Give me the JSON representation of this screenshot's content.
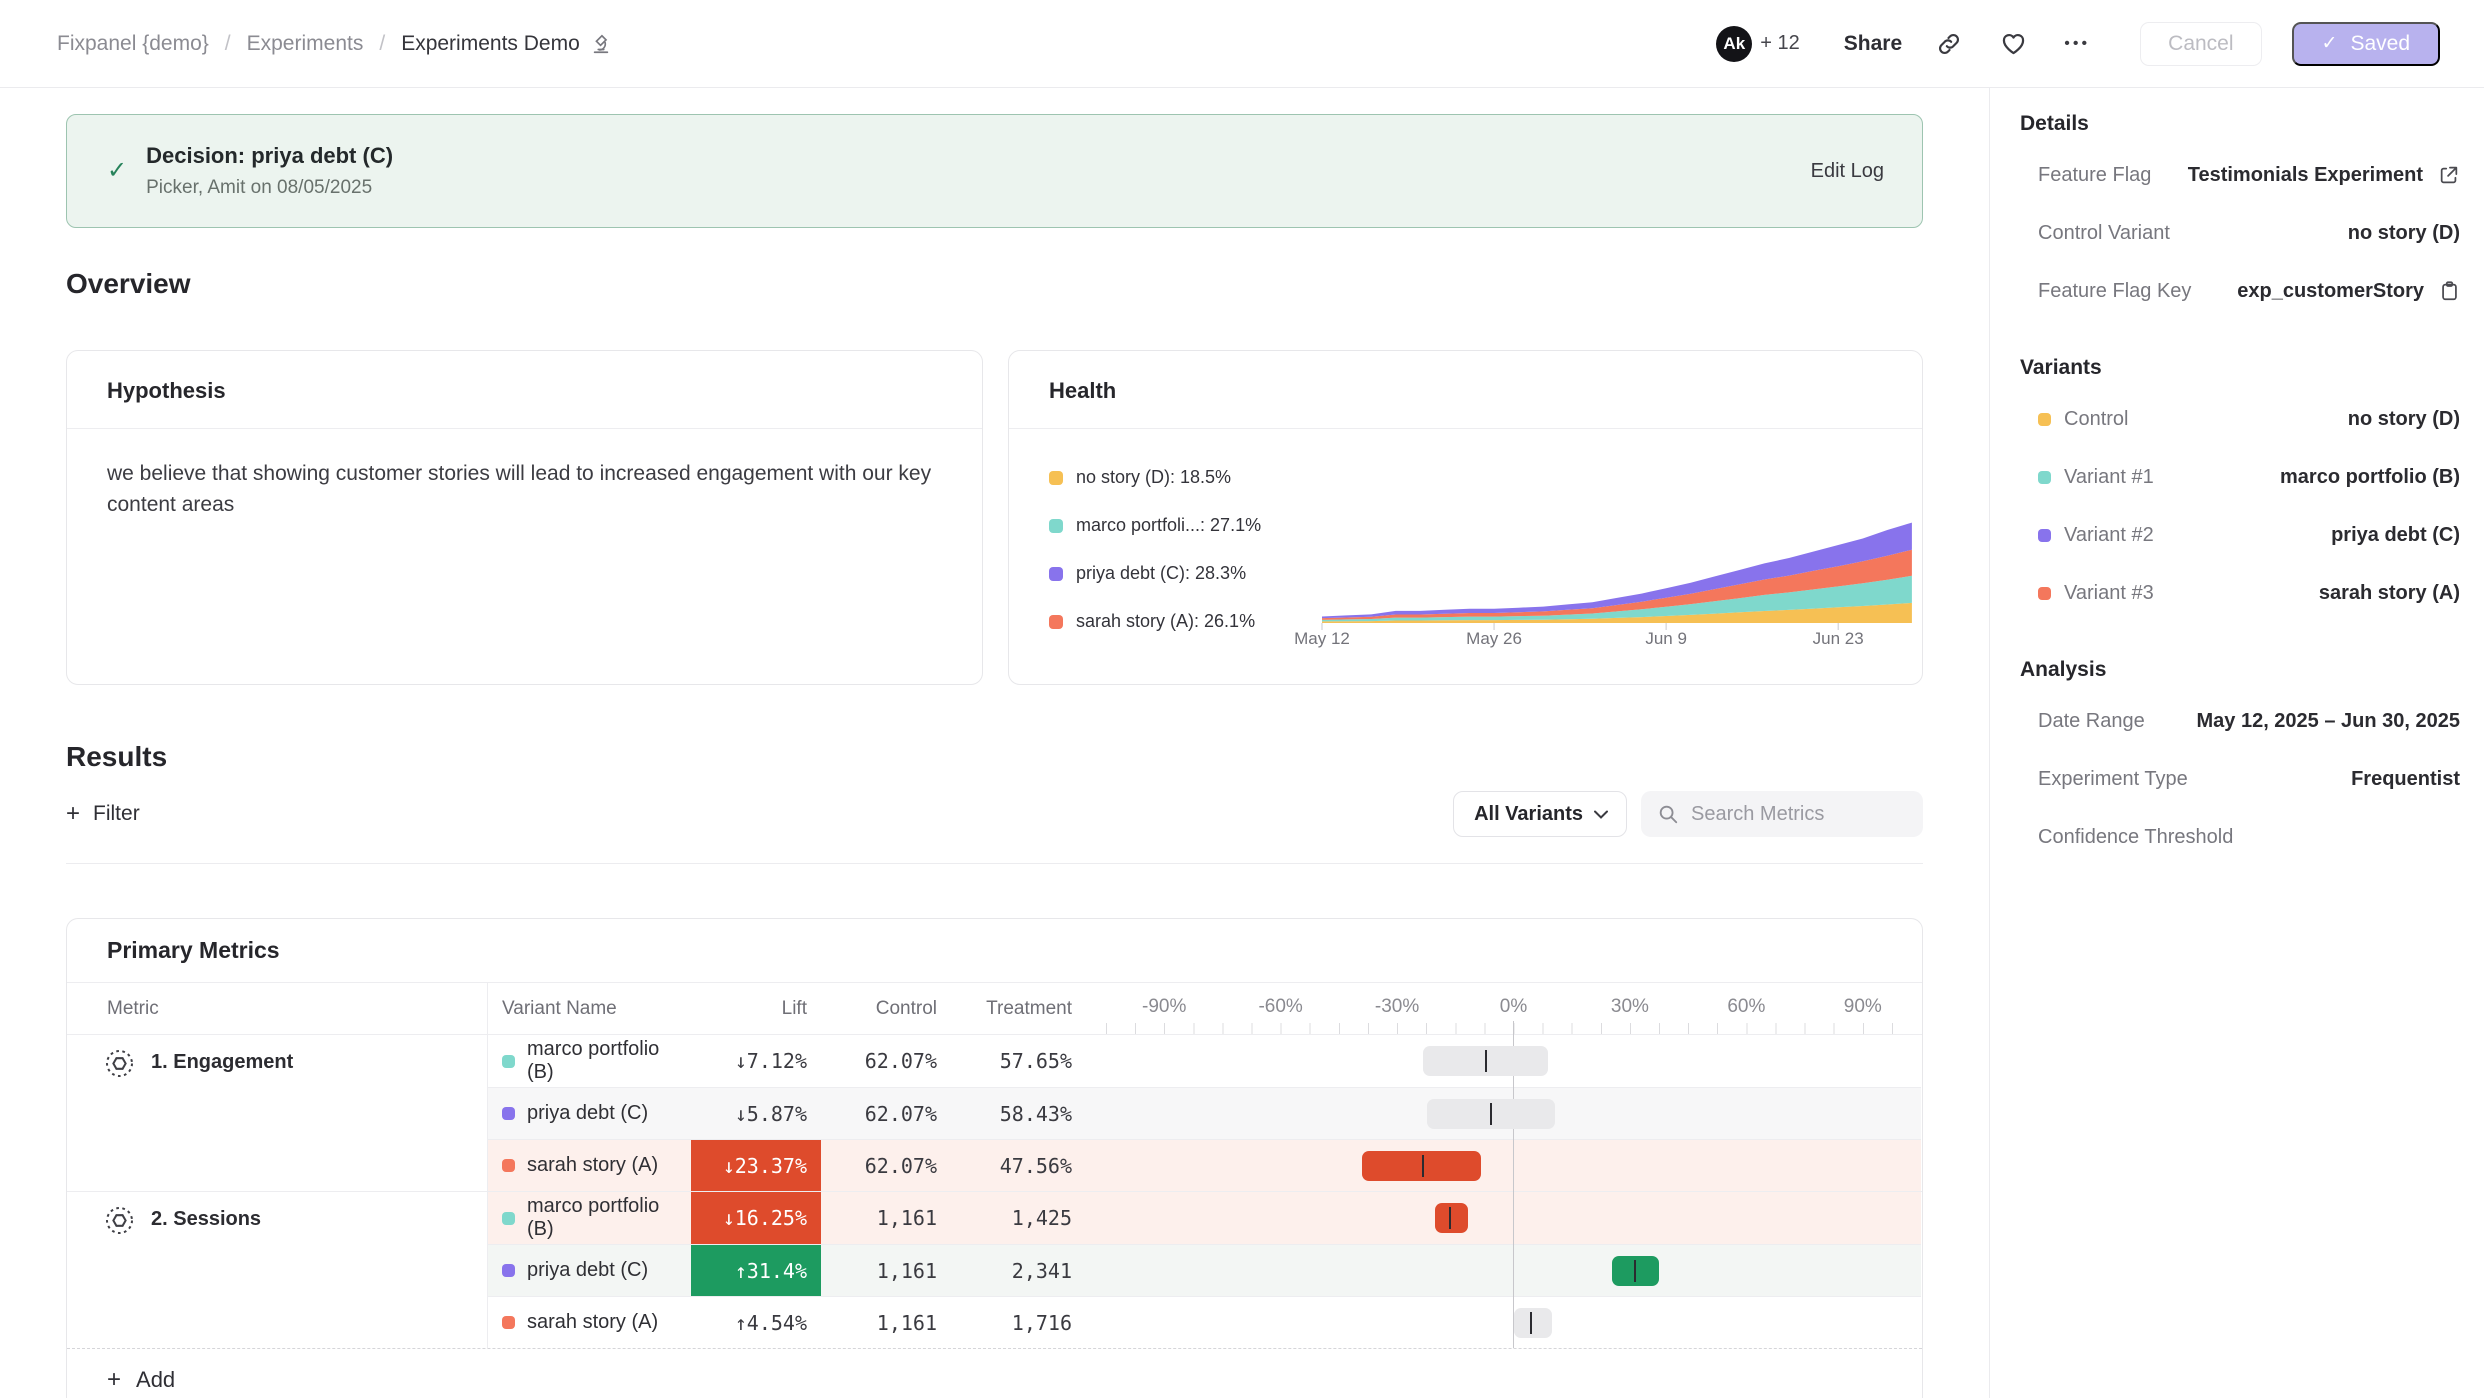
{
  "header": {
    "breadcrumb": [
      {
        "label": "Fixpanel {demo}"
      },
      {
        "label": "Experiments"
      },
      {
        "label": "Experiments Demo"
      }
    ],
    "avatar_initials": "Ak",
    "collaborators_more": "+ 12",
    "share_label": "Share",
    "cancel_label": "Cancel",
    "saved_label": "Saved",
    "saved_check": "✓"
  },
  "banner": {
    "check": "✓",
    "title": "Decision: priya debt (C)",
    "subtitle": "Picker, Amit on 08/05/2025",
    "action": "Edit Log"
  },
  "overview": {
    "title": "Overview",
    "hypothesis": {
      "title": "Hypothesis",
      "body": "we believe that showing customer stories will lead to increased engagement with our key content areas"
    },
    "health": {
      "title": "Health"
    }
  },
  "chart_data": [
    {
      "type": "area",
      "title": "Health",
      "stacked": true,
      "x_axis_labels": [
        "May 12",
        "May 26",
        "Jun 9",
        "Jun 23"
      ],
      "tick_days": [
        0,
        14,
        28,
        42
      ],
      "x_days": [
        0,
        2,
        4,
        6,
        8,
        10,
        12,
        14,
        16,
        18,
        20,
        22,
        24,
        26,
        28,
        30,
        32,
        34,
        36,
        38,
        40,
        42,
        44,
        46,
        48
      ],
      "series": [
        {
          "name": "no story (D)",
          "color": "#f6c054",
          "values": [
            1.5,
            1.6,
            1.8,
            2.3,
            2.3,
            2.5,
            2.7,
            2.7,
            2.9,
            3.1,
            3.5,
            3.9,
            4.7,
            5.5,
            6.5,
            7.5,
            8.7,
            9.9,
            11.1,
            12.1,
            13.3,
            14.5,
            15.7,
            17.1,
            18.6
          ]
        },
        {
          "name": "marco portfolio (B)",
          "color": "#7fd8cc",
          "values": [
            1.4,
            1.7,
            1.9,
            2.7,
            2.7,
            3.0,
            3.2,
            3.2,
            3.5,
            3.7,
            4.3,
            4.9,
            6.0,
            7.2,
            8.6,
            10.0,
            11.6,
            13.2,
            14.9,
            16.2,
            17.8,
            19.4,
            21.1,
            23.0,
            25.1
          ]
        },
        {
          "name": "sarah story (A)",
          "color": "#f4775c",
          "values": [
            1.6,
            1.8,
            2.1,
            2.9,
            2.9,
            3.1,
            3.4,
            3.4,
            3.6,
            3.9,
            4.4,
            4.9,
            6.0,
            7.0,
            8.3,
            9.6,
            11.2,
            12.7,
            14.3,
            15.6,
            17.2,
            18.7,
            20.3,
            22.1,
            24.2
          ]
        },
        {
          "name": "priya debt (C)",
          "color": "#8873ec",
          "values": [
            1.5,
            1.9,
            2.2,
            3.3,
            3.3,
            3.6,
            3.9,
            3.9,
            4.2,
            4.5,
            5.0,
            5.5,
            6.5,
            7.5,
            8.8,
            10.1,
            11.7,
            13.4,
            14.9,
            16.3,
            17.9,
            19.6,
            21.1,
            23.9,
            25.1
          ]
        }
      ],
      "legend": [
        {
          "label": "no story (D): 18.5%",
          "color": "#f6c054"
        },
        {
          "label": "marco portfoli...: 27.1%",
          "color": "#7fd8cc"
        },
        {
          "label": "priya debt (C): 28.3%",
          "color": "#8873ec"
        },
        {
          "label": "sarah story (A): 26.1%",
          "color": "#f4775c"
        }
      ]
    },
    {
      "type": "ci_bars",
      "axis": {
        "min": -105,
        "max": 105,
        "ticks": [
          -90,
          -60,
          -30,
          0,
          30,
          60,
          90
        ],
        "tick_suffix": "%"
      },
      "rows": [
        {
          "metric": "1. Engagement",
          "variant": "marco portfolio (B)",
          "low": -23.3,
          "high": 9.0,
          "mean": -7.12,
          "color": "gray"
        },
        {
          "metric": "1. Engagement",
          "variant": "priya debt (C)",
          "low": -22.2,
          "high": 10.6,
          "mean": -5.87,
          "color": "gray"
        },
        {
          "metric": "1. Engagement",
          "variant": "sarah story (A)",
          "low": -39.0,
          "high": -8.5,
          "mean": -23.37,
          "color": "red"
        },
        {
          "metric": "2. Sessions",
          "variant": "marco portfolio (B)",
          "low": -20.2,
          "high": -11.6,
          "mean": -16.25,
          "color": "red"
        },
        {
          "metric": "2. Sessions",
          "variant": "priya debt (C)",
          "low": 25.3,
          "high": 37.5,
          "mean": 31.4,
          "color": "green"
        },
        {
          "metric": "2. Sessions",
          "variant": "sarah story (A)",
          "low": 0.0,
          "high": 9.8,
          "mean": 4.54,
          "color": "gray"
        }
      ]
    }
  ],
  "results": {
    "title": "Results",
    "filter_label": "Filter",
    "variants_dropdown": "All Variants",
    "search_placeholder": "Search Metrics",
    "table": {
      "title": "Primary Metrics",
      "columns": [
        "Metric",
        "Variant Name",
        "Lift",
        "Control",
        "Treatment"
      ],
      "add_label": "Add",
      "colors": {
        "bar_gray": "#e9e9eb",
        "bar_red": "#de4b2c",
        "bar_green": "#1d9b60"
      },
      "groups": [
        {
          "metric": "1. Engagement",
          "rows": [
            {
              "variant": "marco portfolio (B)",
              "swatch": "#7fd8cc",
              "lift": "↓7.12%",
              "lift_style": "plain",
              "control": "62.07%",
              "treatment": "57.65%",
              "row_bg": "#ffffff"
            },
            {
              "variant": "priya debt (C)",
              "swatch": "#8873ec",
              "lift": "↓5.87%",
              "lift_style": "plain",
              "control": "62.07%",
              "treatment": "58.43%",
              "row_bg": "#f7f7f8"
            },
            {
              "variant": "sarah story (A)",
              "swatch": "#f4775c",
              "lift": "↓23.37%",
              "lift_style": "negative",
              "control": "62.07%",
              "treatment": "47.56%",
              "row_bg": "#fdf0ec"
            }
          ]
        },
        {
          "metric": "2. Sessions",
          "rows": [
            {
              "variant": "marco portfolio (B)",
              "swatch": "#7fd8cc",
              "lift": "↓16.25%",
              "lift_style": "negative",
              "control": "1,161",
              "treatment": "1,425",
              "row_bg": "#fdf0ec"
            },
            {
              "variant": "priya debt (C)",
              "swatch": "#8873ec",
              "lift": "↑31.4%",
              "lift_style": "positive",
              "control": "1,161",
              "treatment": "2,341",
              "row_bg": "#f3f6f4"
            },
            {
              "variant": "sarah story (A)",
              "swatch": "#f4775c",
              "lift": "↑4.54%",
              "lift_style": "plain",
              "control": "1,161",
              "treatment": "1,716",
              "row_bg": "#ffffff"
            }
          ]
        }
      ]
    }
  },
  "sidebar": {
    "sections": [
      {
        "title": "Details",
        "rows": [
          {
            "label": "Feature Flag",
            "value": "Testimonials Experiment",
            "icon": "external-link"
          },
          {
            "label": "Control Variant",
            "value": "no story (D)"
          },
          {
            "label": "Feature Flag Key",
            "value": "exp_customerStory",
            "icon": "copy"
          }
        ]
      },
      {
        "title": "Variants",
        "rows": [
          {
            "label": "Control",
            "swatch": "#f6c054",
            "value": "no story (D)"
          },
          {
            "label": "Variant #1",
            "swatch": "#7fd8cc",
            "value": "marco portfolio (B)"
          },
          {
            "label": "Variant #2",
            "swatch": "#8873ec",
            "value": "priya debt (C)"
          },
          {
            "label": "Variant #3",
            "swatch": "#f4775c",
            "value": "sarah story (A)"
          }
        ]
      },
      {
        "title": "Analysis",
        "rows": [
          {
            "label": "Date Range",
            "value": "May 12, 2025 – Jun 30, 2025"
          },
          {
            "label": "Experiment Type",
            "value": "Frequentist"
          },
          {
            "label": "Confidence Threshold",
            "value": ""
          }
        ]
      }
    ]
  }
}
